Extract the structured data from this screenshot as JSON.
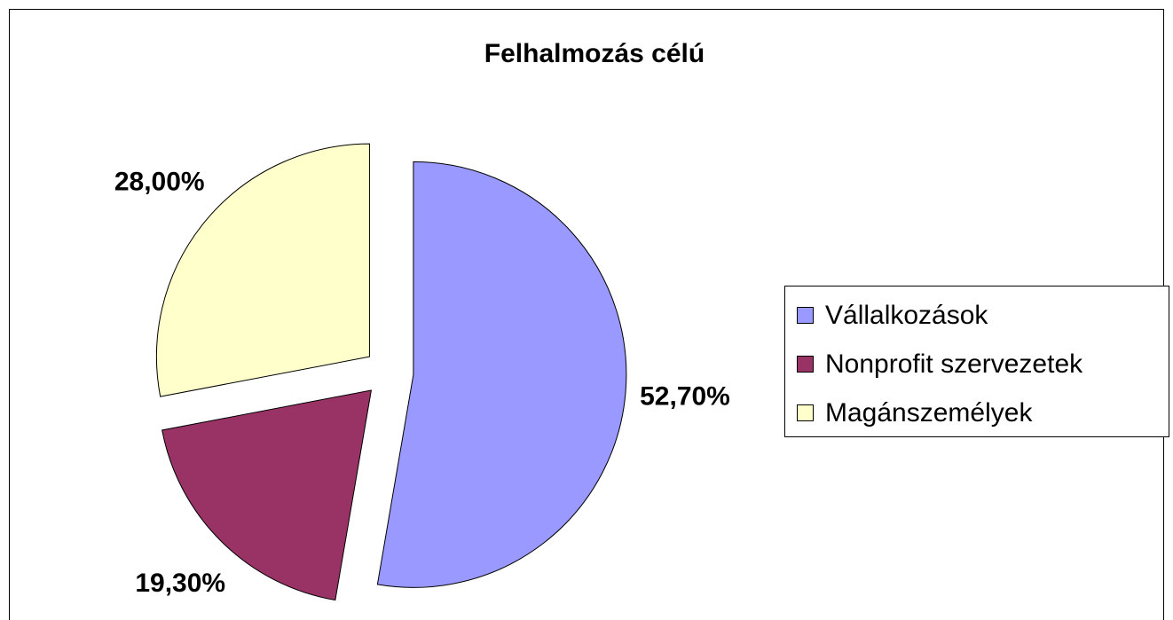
{
  "chart_data": {
    "type": "pie",
    "title": "Felhalmozás célú",
    "categories": [
      "Vállalkozások",
      "Nonprofit szervezetek",
      "Magánszemélyek"
    ],
    "values": [
      52.7,
      19.3,
      28.0
    ],
    "value_labels": [
      "52,70%",
      "19,30%",
      "28,00%"
    ],
    "colors": [
      "#9999ff",
      "#993366",
      "#ffffcc"
    ],
    "exploded": true,
    "legend": "right"
  }
}
